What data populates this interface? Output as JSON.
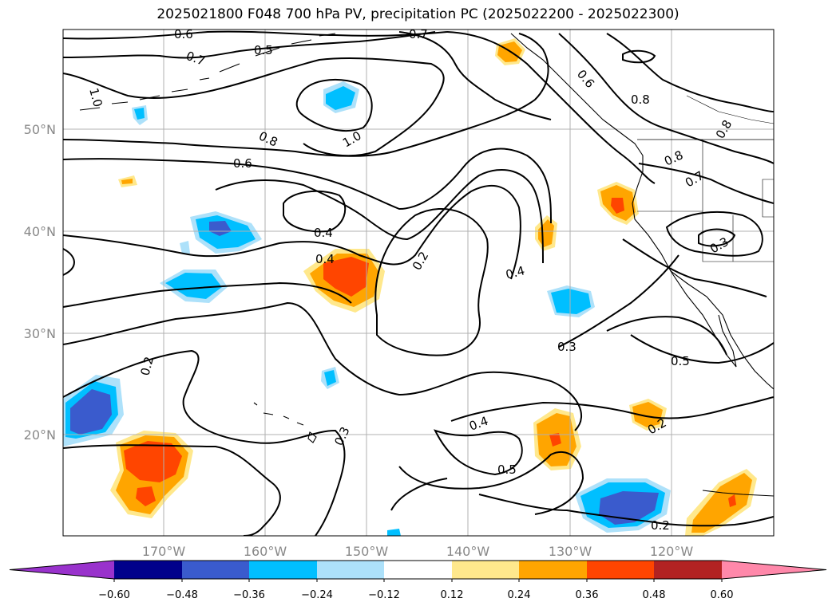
{
  "title": "2025021800 F048 700 hPa PV, precipitation PC (2025022200 - 2025022300)",
  "lat_ticks": [
    "50°N",
    "40°N",
    "30°N",
    "20°N"
  ],
  "lon_ticks": [
    "170°W",
    "160°W",
    "150°W",
    "140°W",
    "130°W",
    "120°W"
  ],
  "colorbar": {
    "ticks": [
      "−0.60",
      "−0.48",
      "−0.36",
      "−0.24",
      "−0.12",
      "0.12",
      "0.24",
      "0.36",
      "0.48",
      "0.60"
    ],
    "colors": [
      "#9932CC",
      "#00008B",
      "#3A5BCD",
      "#00BFFF",
      "#ADE1FA",
      "#FFFFFF",
      "#FFE88C",
      "#FFA500",
      "#FF4500",
      "#B22222",
      "#FF88AA"
    ]
  },
  "contour_labels": [
    "0.6",
    "0.7",
    "0.5",
    "0.7",
    "1.0",
    "0.8",
    "1.0",
    "0.6",
    "0.6",
    "0.8",
    "0.8",
    "0.8",
    "0.7",
    "0.4",
    "0.4",
    "0.2",
    "0.4",
    "0.3",
    "0.5",
    "0.3",
    "0.2",
    "0.3",
    "0.4",
    "0.5",
    "0.2",
    "0.2"
  ]
}
